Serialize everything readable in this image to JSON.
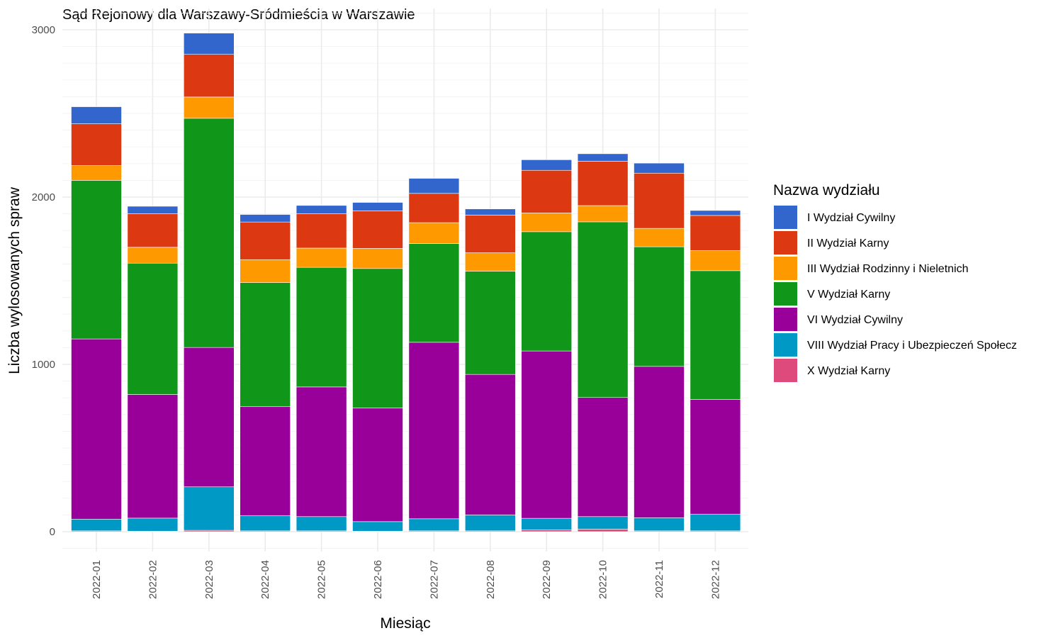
{
  "chart_data": {
    "type": "bar",
    "stacked": true,
    "title": "Sąd Rejonowy dla Warszawy-Sródmieścia w Warszawie",
    "xlabel": "Miesiąc",
    "ylabel": "Liczba wylosowanych spraw",
    "ylim": [
      0,
      3000
    ],
    "yticks": [
      0,
      1000,
      2000,
      3000
    ],
    "grid": true,
    "legend_title": "Nazwa wydziału",
    "legend_position": "right",
    "categories": [
      "2022-01",
      "2022-02",
      "2022-03",
      "2022-04",
      "2022-05",
      "2022-06",
      "2022-07",
      "2022-08",
      "2022-09",
      "2022-10",
      "2022-11",
      "2022-12"
    ],
    "series": [
      {
        "name": "X Wydział Karny",
        "color": "#DE4A7B",
        "values": [
          5,
          3,
          8,
          5,
          5,
          3,
          5,
          5,
          10,
          15,
          5,
          5
        ]
      },
      {
        "name": "VIII Wydział Pracy i Ubezpieczeń Społecz",
        "color": "#0099C6",
        "values": [
          70,
          78,
          260,
          90,
          85,
          57,
          72,
          95,
          70,
          75,
          78,
          100
        ]
      },
      {
        "name": "VI Wydział Cywilny",
        "color": "#990099",
        "values": [
          1077,
          739,
          833,
          652,
          775,
          680,
          1055,
          840,
          1000,
          712,
          905,
          685
        ]
      },
      {
        "name": "V Wydział Karny",
        "color": "#109618",
        "values": [
          948,
          785,
          1370,
          742,
          715,
          833,
          590,
          617,
          713,
          1050,
          715,
          770
        ]
      },
      {
        "name": "III Wydział Rodzinny i Nieletnich",
        "color": "#FF9900",
        "values": [
          88,
          95,
          127,
          137,
          115,
          120,
          125,
          110,
          112,
          97,
          110,
          120
        ]
      },
      {
        "name": "II Wydział Karny",
        "color": "#DC3912",
        "values": [
          250,
          200,
          255,
          225,
          205,
          225,
          175,
          225,
          255,
          265,
          330,
          210
        ]
      },
      {
        "name": "I Wydział Cywilny",
        "color": "#3366CC",
        "values": [
          102,
          45,
          127,
          45,
          50,
          50,
          90,
          37,
          63,
          45,
          60,
          30
        ]
      }
    ]
  }
}
